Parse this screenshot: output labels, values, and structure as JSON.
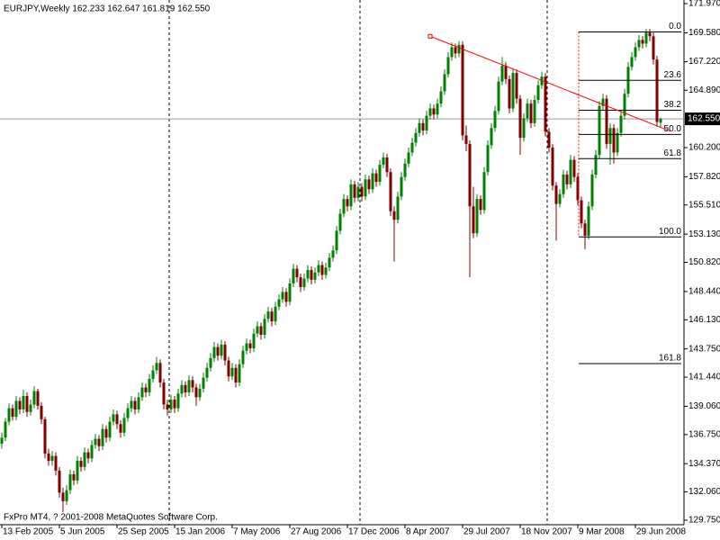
{
  "chart_data": {
    "type": "candlestick",
    "title": "EURJPY,Weekly  162.233 162.647 161.819 162.550",
    "watermark": "FxPro MT4, ? 2001-2008 MetaQuotes Software Corp.",
    "up_color": "#008000",
    "down_color": "#800000",
    "ylim": [
      129.75,
      171.97
    ],
    "yticks": [
      {
        "value": 171.97,
        "label": "171.970"
      },
      {
        "value": 169.58,
        "label": "169.580"
      },
      {
        "value": 167.22,
        "label": "167.220"
      },
      {
        "value": 164.89,
        "label": "164.890"
      },
      {
        "value": 160.2,
        "label": "160.200"
      },
      {
        "value": 157.82,
        "label": "157.820"
      },
      {
        "value": 155.51,
        "label": "155.510"
      },
      {
        "value": 153.13,
        "label": "153.130"
      },
      {
        "value": 150.82,
        "label": "150.820"
      },
      {
        "value": 148.44,
        "label": "148.440"
      },
      {
        "value": 146.13,
        "label": "146.130"
      },
      {
        "value": 143.75,
        "label": "143.750"
      },
      {
        "value": 141.44,
        "label": "141.440"
      },
      {
        "value": 139.06,
        "label": "139.060"
      },
      {
        "value": 136.75,
        "label": "136.750"
      },
      {
        "value": 134.37,
        "label": "134.370"
      },
      {
        "value": 132.06,
        "label": "132.060"
      },
      {
        "value": 129.75,
        "label": "129.750"
      }
    ],
    "bid": {
      "value": 162.55,
      "label": "162.550"
    },
    "categories": [
      "13 Feb 2005",
      null,
      null,
      null,
      null,
      null,
      null,
      null,
      null,
      null,
      null,
      null,
      null,
      null,
      null,
      null,
      "5 Jun 2005",
      null,
      null,
      null,
      null,
      null,
      null,
      null,
      null,
      null,
      null,
      null,
      null,
      null,
      null,
      null,
      "25 Sep 2005",
      null,
      null,
      null,
      null,
      null,
      null,
      null,
      null,
      null,
      null,
      null,
      null,
      null,
      null,
      null,
      "15 Jan 2006",
      null,
      null,
      null,
      null,
      null,
      null,
      null,
      null,
      null,
      null,
      null,
      null,
      null,
      null,
      null,
      "7 May 2006",
      null,
      null,
      null,
      null,
      null,
      null,
      null,
      null,
      null,
      null,
      null,
      null,
      null,
      null,
      null,
      "27 Aug 2006",
      null,
      null,
      null,
      null,
      null,
      null,
      null,
      null,
      null,
      null,
      null,
      null,
      null,
      null,
      null,
      "17 Dec 2006",
      null,
      null,
      null,
      null,
      null,
      null,
      null,
      null,
      null,
      null,
      null,
      null,
      null,
      null,
      null,
      "8 Apr 2007",
      null,
      null,
      null,
      null,
      null,
      null,
      null,
      null,
      null,
      null,
      null,
      null,
      null,
      null,
      null,
      "29 Jul 2007",
      null,
      null,
      null,
      null,
      null,
      null,
      null,
      null,
      null,
      null,
      null,
      null,
      null,
      null,
      null,
      "18 Nov 2007",
      null,
      null,
      null,
      null,
      null,
      null,
      null,
      null,
      null,
      null,
      null,
      null,
      null,
      null,
      null,
      "9 Mar 2008",
      null,
      null,
      null,
      null,
      null,
      null,
      null,
      null,
      null,
      null,
      null,
      null,
      null,
      null,
      null,
      "29 Jun 2008",
      null,
      null,
      null,
      null,
      null,
      null,
      null
    ],
    "candles": [
      [
        136.0,
        136.9,
        135.6,
        136.5
      ],
      [
        136.5,
        138.1,
        136.2,
        137.8
      ],
      [
        137.8,
        139.3,
        137.5,
        138.9
      ],
      [
        138.9,
        139.2,
        137.9,
        138.2
      ],
      [
        138.2,
        139.9,
        137.9,
        139.5
      ],
      [
        139.5,
        139.8,
        138.4,
        138.8
      ],
      [
        138.8,
        140.4,
        138.5,
        139.9
      ],
      [
        139.9,
        140.2,
        138.2,
        138.6
      ],
      [
        138.6,
        139.6,
        138.3,
        139.2
      ],
      [
        139.2,
        140.7,
        138.9,
        140.3
      ],
      [
        140.3,
        140.5,
        138.8,
        139.1
      ],
      [
        139.1,
        139.4,
        137.6,
        138.0
      ],
      [
        138.0,
        138.2,
        134.8,
        135.2
      ],
      [
        135.2,
        135.6,
        134.2,
        134.6
      ],
      [
        134.6,
        135.4,
        134.2,
        135.0
      ],
      [
        135.0,
        135.3,
        133.4,
        133.8
      ],
      [
        133.8,
        134.1,
        131.6,
        132.0
      ],
      [
        132.0,
        132.4,
        130.4,
        131.3
      ],
      [
        131.3,
        132.6,
        131.0,
        132.2
      ],
      [
        132.2,
        133.9,
        131.9,
        133.5
      ],
      [
        133.5,
        133.8,
        132.6,
        133.0
      ],
      [
        133.0,
        135.0,
        132.7,
        134.6
      ],
      [
        134.6,
        134.9,
        133.7,
        134.1
      ],
      [
        134.1,
        135.7,
        133.8,
        135.3
      ],
      [
        135.3,
        135.6,
        134.4,
        134.8
      ],
      [
        134.8,
        136.3,
        134.5,
        135.9
      ],
      [
        135.9,
        136.8,
        135.6,
        136.4
      ],
      [
        136.4,
        136.7,
        135.4,
        135.8
      ],
      [
        135.8,
        137.6,
        135.5,
        137.2
      ],
      [
        137.2,
        137.5,
        136.1,
        136.5
      ],
      [
        136.5,
        138.2,
        136.2,
        137.8
      ],
      [
        137.8,
        138.8,
        137.5,
        138.4
      ],
      [
        138.4,
        138.7,
        137.2,
        137.6
      ],
      [
        137.6,
        137.9,
        136.5,
        136.9
      ],
      [
        136.9,
        138.5,
        136.6,
        138.1
      ],
      [
        138.1,
        139.3,
        137.8,
        138.9
      ],
      [
        138.9,
        139.9,
        138.6,
        139.5
      ],
      [
        139.5,
        139.8,
        138.4,
        138.8
      ],
      [
        138.8,
        140.2,
        138.5,
        139.8
      ],
      [
        139.8,
        141.0,
        139.5,
        140.6
      ],
      [
        140.6,
        140.9,
        139.8,
        140.2
      ],
      [
        140.2,
        141.7,
        139.9,
        141.3
      ],
      [
        141.3,
        142.4,
        141.0,
        142.0
      ],
      [
        142.0,
        143.1,
        141.7,
        142.6
      ],
      [
        142.6,
        142.9,
        140.6,
        141.0
      ],
      [
        141.0,
        141.3,
        138.8,
        139.2
      ],
      [
        139.2,
        139.6,
        138.3,
        138.8
      ],
      [
        138.8,
        140.0,
        138.5,
        139.6
      ],
      [
        139.6,
        139.9,
        138.5,
        138.9
      ],
      [
        138.9,
        140.5,
        138.6,
        140.1
      ],
      [
        140.1,
        141.2,
        139.8,
        140.8
      ],
      [
        140.8,
        141.1,
        139.8,
        140.2
      ],
      [
        140.2,
        141.6,
        139.9,
        141.2
      ],
      [
        141.2,
        141.5,
        140.2,
        140.6
      ],
      [
        140.6,
        140.9,
        139.1,
        139.8
      ],
      [
        139.8,
        140.9,
        139.5,
        140.5
      ],
      [
        140.5,
        141.8,
        140.2,
        141.4
      ],
      [
        141.4,
        142.6,
        141.1,
        142.2
      ],
      [
        142.2,
        143.4,
        141.9,
        143.0
      ],
      [
        143.0,
        144.3,
        142.7,
        143.9
      ],
      [
        143.9,
        144.2,
        142.8,
        143.2
      ],
      [
        143.2,
        144.5,
        142.9,
        144.1
      ],
      [
        144.1,
        144.4,
        142.4,
        142.8
      ],
      [
        142.8,
        143.1,
        141.1,
        141.5
      ],
      [
        141.5,
        142.6,
        141.2,
        142.2
      ],
      [
        142.2,
        142.5,
        140.6,
        141.0
      ],
      [
        141.0,
        142.9,
        140.7,
        142.5
      ],
      [
        142.5,
        144.0,
        142.2,
        143.6
      ],
      [
        143.6,
        144.6,
        143.3,
        144.2
      ],
      [
        144.2,
        144.5,
        143.4,
        143.8
      ],
      [
        143.8,
        145.4,
        143.5,
        145.0
      ],
      [
        145.0,
        146.0,
        144.7,
        145.6
      ],
      [
        145.6,
        145.9,
        144.5,
        144.9
      ],
      [
        144.9,
        146.6,
        144.6,
        146.2
      ],
      [
        146.2,
        147.2,
        145.9,
        146.8
      ],
      [
        146.8,
        147.1,
        145.6,
        146.0
      ],
      [
        146.0,
        147.6,
        145.7,
        147.2
      ],
      [
        147.2,
        148.2,
        146.9,
        147.8
      ],
      [
        147.8,
        148.8,
        147.5,
        148.4
      ],
      [
        148.4,
        148.7,
        147.2,
        147.6
      ],
      [
        147.6,
        149.5,
        147.3,
        149.1
      ],
      [
        149.1,
        150.7,
        148.8,
        150.3
      ],
      [
        150.3,
        150.6,
        149.2,
        149.6
      ],
      [
        149.6,
        149.9,
        148.4,
        148.8
      ],
      [
        148.8,
        149.9,
        148.5,
        149.5
      ],
      [
        149.5,
        150.6,
        149.2,
        150.2
      ],
      [
        150.2,
        150.5,
        149.0,
        149.4
      ],
      [
        149.4,
        150.4,
        149.1,
        150.0
      ],
      [
        150.0,
        151.0,
        149.7,
        150.6
      ],
      [
        150.6,
        150.9,
        149.4,
        149.8
      ],
      [
        149.8,
        150.8,
        149.5,
        150.4
      ],
      [
        150.4,
        151.6,
        150.1,
        151.2
      ],
      [
        151.2,
        152.2,
        150.9,
        151.8
      ],
      [
        151.8,
        153.8,
        151.5,
        153.4
      ],
      [
        153.4,
        155.2,
        153.1,
        154.8
      ],
      [
        154.8,
        156.4,
        154.5,
        156.0
      ],
      [
        156.0,
        156.3,
        155.0,
        155.4
      ],
      [
        155.4,
        157.6,
        155.1,
        157.2
      ],
      [
        157.2,
        157.5,
        155.7,
        156.1
      ],
      [
        156.1,
        157.4,
        155.8,
        157.0
      ],
      [
        157.0,
        157.3,
        155.8,
        156.2
      ],
      [
        156.2,
        158.0,
        155.9,
        157.6
      ],
      [
        157.6,
        157.9,
        156.4,
        156.8
      ],
      [
        156.8,
        158.5,
        156.5,
        158.1
      ],
      [
        158.1,
        158.4,
        157.0,
        157.4
      ],
      [
        157.4,
        159.2,
        157.1,
        158.8
      ],
      [
        158.8,
        159.8,
        158.5,
        159.4
      ],
      [
        159.4,
        159.7,
        157.8,
        158.2
      ],
      [
        158.2,
        158.5,
        154.6,
        155.0
      ],
      [
        155.0,
        155.4,
        150.9,
        154.3
      ],
      [
        154.3,
        156.6,
        154.0,
        156.2
      ],
      [
        156.2,
        158.2,
        155.9,
        157.8
      ],
      [
        157.8,
        159.3,
        157.5,
        158.9
      ],
      [
        158.9,
        160.2,
        158.6,
        159.8
      ],
      [
        159.8,
        161.0,
        159.5,
        160.6
      ],
      [
        160.6,
        161.8,
        160.3,
        161.4
      ],
      [
        161.4,
        162.6,
        161.1,
        162.2
      ],
      [
        162.2,
        162.5,
        161.2,
        161.6
      ],
      [
        161.6,
        163.2,
        161.3,
        162.8
      ],
      [
        162.8,
        163.8,
        162.5,
        163.4
      ],
      [
        163.4,
        163.7,
        162.5,
        162.9
      ],
      [
        162.9,
        164.2,
        162.6,
        163.8
      ],
      [
        163.8,
        165.2,
        163.5,
        164.8
      ],
      [
        164.8,
        166.6,
        164.5,
        166.2
      ],
      [
        166.2,
        168.0,
        165.9,
        167.6
      ],
      [
        167.6,
        168.8,
        167.3,
        168.4
      ],
      [
        168.4,
        168.7,
        167.5,
        167.9
      ],
      [
        167.9,
        168.9,
        167.6,
        168.6
      ],
      [
        168.6,
        168.9,
        160.8,
        161.2
      ],
      [
        161.2,
        162.0,
        159.9,
        160.5
      ],
      [
        160.5,
        160.8,
        149.6,
        155.4
      ],
      [
        155.4,
        157.0,
        152.8,
        153.2
      ],
      [
        153.2,
        156.4,
        152.9,
        156.0
      ],
      [
        156.0,
        156.3,
        154.7,
        155.1
      ],
      [
        155.1,
        158.6,
        154.8,
        158.2
      ],
      [
        158.2,
        160.8,
        157.9,
        160.4
      ],
      [
        160.4,
        162.2,
        160.1,
        161.8
      ],
      [
        161.8,
        163.6,
        161.5,
        163.2
      ],
      [
        163.2,
        166.0,
        162.9,
        165.6
      ],
      [
        165.6,
        167.6,
        165.3,
        166.9
      ],
      [
        166.9,
        167.2,
        165.4,
        165.8
      ],
      [
        165.8,
        166.1,
        163.0,
        163.4
      ],
      [
        163.4,
        166.7,
        163.1,
        166.3
      ],
      [
        166.3,
        166.6,
        163.8,
        164.2
      ],
      [
        164.2,
        164.5,
        159.6,
        161.0
      ],
      [
        161.0,
        163.0,
        160.7,
        162.6
      ],
      [
        162.6,
        164.2,
        162.3,
        163.8
      ],
      [
        163.8,
        164.1,
        161.8,
        162.2
      ],
      [
        162.2,
        164.5,
        161.9,
        164.1
      ],
      [
        164.1,
        165.7,
        163.8,
        165.3
      ],
      [
        165.3,
        166.4,
        165.0,
        166.0
      ],
      [
        166.0,
        166.3,
        161.1,
        161.5
      ],
      [
        161.5,
        161.8,
        159.8,
        160.2
      ],
      [
        160.2,
        160.5,
        156.7,
        157.1
      ],
      [
        157.1,
        157.4,
        152.6,
        155.6
      ],
      [
        155.6,
        156.8,
        155.3,
        156.4
      ],
      [
        156.4,
        158.4,
        156.1,
        158.0
      ],
      [
        158.0,
        158.3,
        156.8,
        157.2
      ],
      [
        157.2,
        159.6,
        156.9,
        159.2
      ],
      [
        159.2,
        159.5,
        157.4,
        157.8
      ],
      [
        157.8,
        158.1,
        155.5,
        155.9
      ],
      [
        155.9,
        156.2,
        153.6,
        154.0
      ],
      [
        154.0,
        154.3,
        151.9,
        153.0
      ],
      [
        153.0,
        155.8,
        152.7,
        155.4
      ],
      [
        155.4,
        158.4,
        155.1,
        158.0
      ],
      [
        158.0,
        160.0,
        157.7,
        159.6
      ],
      [
        159.6,
        164.0,
        159.3,
        163.6
      ],
      [
        163.6,
        164.6,
        163.3,
        164.2
      ],
      [
        164.2,
        164.5,
        160.1,
        160.5
      ],
      [
        160.5,
        162.2,
        158.8,
        161.8
      ],
      [
        161.8,
        162.1,
        158.9,
        159.8
      ],
      [
        159.8,
        161.8,
        159.5,
        161.4
      ],
      [
        161.4,
        163.2,
        161.1,
        162.8
      ],
      [
        162.8,
        165.0,
        162.5,
        164.6
      ],
      [
        164.6,
        167.2,
        164.3,
        166.8
      ],
      [
        166.8,
        168.0,
        166.5,
        167.6
      ],
      [
        167.6,
        168.8,
        167.3,
        168.4
      ],
      [
        168.4,
        169.4,
        168.1,
        169.0
      ],
      [
        169.0,
        169.3,
        168.3,
        168.7
      ],
      [
        168.7,
        169.9,
        168.4,
        169.6
      ],
      [
        169.6,
        169.9,
        168.9,
        169.3
      ],
      [
        169.3,
        169.6,
        167.0,
        167.4
      ],
      [
        167.4,
        167.7,
        161.9,
        162.3
      ],
      [
        162.233,
        162.647,
        161.819,
        162.55
      ]
    ],
    "fibonacci": {
      "color": "#ff0000",
      "high": 169.65,
      "low": 152.9,
      "levels": [
        {
          "value": 0,
          "label": "0.0"
        },
        23.6,
        38.2,
        {
          "value": 50,
          "label": "50.0"
        },
        61.8,
        {
          "value": 100,
          "label": "100.0"
        },
        161.8
      ]
    },
    "trendline": {
      "color": "#ff0000",
      "points": [
        {
          "index": 119,
          "price": 169.3
        },
        {
          "index": 183,
          "price": 161.86
        }
      ]
    }
  }
}
